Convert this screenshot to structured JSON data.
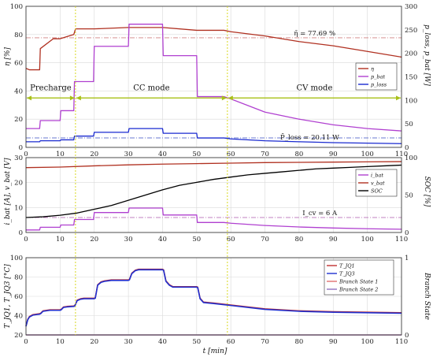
{
  "chart_data": [
    {
      "type": "line",
      "panel": "top",
      "ylabel": "η [%]",
      "ylabel_right": "p_loss, p_bat [W]",
      "xlim": [
        0,
        110
      ],
      "ylim": [
        0,
        100
      ],
      "ylim_right": [
        0,
        300
      ],
      "xticks": [
        "0",
        "10",
        "20",
        "30",
        "40",
        "50",
        "60",
        "70",
        "80",
        "90",
        "100",
        "110"
      ],
      "yticks": [
        "0",
        "20",
        "40",
        "60",
        "80",
        "100"
      ],
      "yticks_right": [
        "0",
        "50",
        "100",
        "150",
        "200",
        "250",
        "300"
      ],
      "grid": true,
      "legend": {
        "placement": "right",
        "entries": [
          "η",
          "p_bat",
          "p_loss"
        ]
      },
      "annotations": {
        "eta_avg": "η̄ = 77.69 %",
        "ploss_avg": "P̄_loss = 20.11 W",
        "precharge": "Precharge",
        "cc": "CC mode",
        "cv": "CV mode"
      },
      "reference_lines": {
        "eta_avg": 77.69,
        "ploss_avg_W": 20.11
      },
      "phase_boundaries_min": [
        14.5,
        59
      ],
      "series": [
        {
          "name": "η",
          "color": "#b03020",
          "axis": "left",
          "x": [
            0,
            1,
            4,
            4.2,
            8,
            10,
            14,
            14.5,
            15,
            20,
            30,
            40,
            50,
            58,
            60,
            70,
            80,
            90,
            100,
            110
          ],
          "y": [
            56,
            55,
            55,
            70,
            77,
            77,
            80,
            84,
            84,
            84,
            85,
            85,
            83,
            83,
            82,
            79,
            75,
            72,
            68,
            64
          ]
        },
        {
          "name": "p_bat",
          "color": "#b040d0",
          "axis": "right",
          "x": [
            0,
            4,
            4.2,
            10,
            10.2,
            14,
            14.2,
            19.8,
            20,
            30,
            30.2,
            40,
            40.2,
            50,
            50.2,
            58,
            60,
            70,
            80,
            90,
            100,
            110
          ],
          "y": [
            40,
            40,
            57,
            57,
            78,
            78,
            140,
            140,
            215,
            215,
            262,
            262,
            195,
            195,
            108,
            108,
            103,
            75,
            60,
            48,
            40,
            35
          ]
        },
        {
          "name": "p_loss",
          "color": "#1a2ad0",
          "axis": "right",
          "x": [
            0,
            4,
            4.2,
            10,
            10.2,
            14,
            14.2,
            19.8,
            20,
            30,
            30.2,
            40,
            40.2,
            50,
            50.2,
            58,
            60,
            70,
            80,
            90,
            100,
            110
          ],
          "y": [
            12,
            12,
            14,
            14,
            16,
            16,
            24,
            24,
            32,
            32,
            40,
            40,
            30,
            30,
            20,
            20,
            18,
            14,
            12,
            10,
            9,
            8
          ]
        }
      ]
    },
    {
      "type": "line",
      "panel": "middle",
      "ylabel": "i_bat [A], v_bat [V]",
      "ylabel_right": "SOC [%]",
      "xlim": [
        0,
        110
      ],
      "ylim": [
        0,
        30
      ],
      "ylim_right": [
        0,
        100
      ],
      "xticks": [
        "0",
        "10",
        "20",
        "30",
        "40",
        "50",
        "60",
        "70",
        "80",
        "90",
        "100",
        "110"
      ],
      "yticks": [
        "0",
        "10",
        "20",
        "30"
      ],
      "yticks_right": [
        "0",
        "50",
        "100"
      ],
      "grid": true,
      "legend": {
        "placement": "right",
        "entries": [
          "i_bat",
          "v_bat",
          "SOC"
        ]
      },
      "annotations": {
        "i_cv": "I_cv = 6 A"
      },
      "reference_lines": {
        "i_cv_A": 6
      },
      "series": [
        {
          "name": "i_bat",
          "color": "#b040d0",
          "axis": "left",
          "x": [
            0,
            4,
            4.2,
            10,
            10.2,
            14,
            14.2,
            19.8,
            20,
            30,
            30.2,
            40,
            40.2,
            50,
            50.2,
            58,
            60,
            70,
            80,
            90,
            100,
            110
          ],
          "y": [
            1,
            1,
            2.1,
            2.1,
            3,
            3,
            5.2,
            5.2,
            8,
            8,
            9.8,
            9.8,
            7,
            7,
            4,
            4,
            3.7,
            2.8,
            2.2,
            1.8,
            1.5,
            1.3
          ]
        },
        {
          "name": "v_bat",
          "color": "#b03020",
          "axis": "left",
          "x": [
            0,
            10,
            20,
            30,
            40,
            50,
            60,
            70,
            80,
            90,
            100,
            110
          ],
          "y": [
            26,
            26.2,
            26.7,
            27.1,
            27.4,
            27.6,
            27.8,
            28,
            28.1,
            28.2,
            28.3,
            28.4
          ]
        },
        {
          "name": "SOC",
          "color": "#000000",
          "axis": "right",
          "x": [
            0,
            5,
            10,
            15,
            20,
            25,
            30,
            35,
            40,
            45,
            50,
            55,
            60,
            65,
            70,
            75,
            80,
            85,
            90,
            95,
            100,
            105,
            110
          ],
          "y": [
            20,
            21,
            23,
            26,
            31,
            36,
            43,
            50,
            57,
            63,
            67,
            71,
            74,
            77,
            79,
            81,
            83,
            85,
            86,
            87,
            88,
            89,
            90
          ]
        }
      ]
    },
    {
      "type": "line",
      "panel": "bottom",
      "ylabel": "T_JQ1, T_JQ3 [°C]",
      "ylabel_right": "Branch State",
      "xlabel": "t [min]",
      "xlim": [
        0,
        110
      ],
      "ylim": [
        20,
        100
      ],
      "ylim_right": [
        0,
        1
      ],
      "xticks": [
        "0",
        "10",
        "20",
        "30",
        "40",
        "50",
        "60",
        "70",
        "80",
        "90",
        "100",
        "110"
      ],
      "yticks": [
        "20",
        "40",
        "60",
        "80",
        "100"
      ],
      "yticks_right": [
        "0",
        "1"
      ],
      "grid": true,
      "legend": {
        "placement": "top-right",
        "entries": [
          "T_JQ1",
          "T_JQ3",
          "Branch State 1",
          "Branch State 2"
        ]
      },
      "series": [
        {
          "name": "T_JQ1",
          "color": "#c03030",
          "axis": "left",
          "x": [
            0,
            0.5,
            1,
            2,
            3,
            4,
            4.3,
            5,
            6,
            7,
            8,
            10,
            10.3,
            11,
            12,
            14,
            14.3,
            15,
            16,
            17,
            19,
            20,
            20.3,
            21,
            22,
            23,
            25,
            30,
            30.3,
            31,
            32,
            33,
            35,
            40,
            40.3,
            41,
            42,
            43,
            45,
            50,
            50.3,
            51,
            52,
            55,
            60,
            70,
            80,
            90,
            100,
            110
          ],
          "y": [
            29,
            36,
            39,
            41,
            41.5,
            42,
            42.5,
            45,
            45.5,
            46,
            46,
            46,
            46.5,
            49,
            49.5,
            50,
            50.5,
            56,
            57.5,
            58,
            58,
            58,
            58.5,
            72,
            75,
            76,
            77,
            77,
            77.5,
            84,
            87,
            88,
            88,
            88,
            87.5,
            76,
            72,
            70,
            70,
            70,
            69.5,
            58,
            54,
            53,
            51,
            47,
            45,
            44,
            43.5,
            43
          ]
        },
        {
          "name": "T_JQ3",
          "color": "#2030d0",
          "axis": "left",
          "x": [
            0,
            0.5,
            1,
            2,
            3,
            4,
            4.3,
            5,
            6,
            7,
            8,
            10,
            10.3,
            11,
            12,
            14,
            14.3,
            15,
            16,
            17,
            19,
            20,
            20.3,
            21,
            22,
            23,
            25,
            30,
            30.3,
            31,
            32,
            33,
            35,
            40,
            40.3,
            41,
            42,
            43,
            45,
            50,
            50.3,
            51,
            52,
            55,
            60,
            70,
            80,
            90,
            100,
            110
          ],
          "y": [
            29,
            35.5,
            38.5,
            40.5,
            41,
            41.5,
            42,
            44.5,
            45,
            45.5,
            45.5,
            45.5,
            46,
            48.5,
            49,
            49.5,
            50,
            55.5,
            57,
            57.5,
            57.5,
            57.5,
            58,
            71.5,
            74.5,
            75.5,
            76.5,
            76.5,
            77,
            83.5,
            86.5,
            87.5,
            87.5,
            87.5,
            87,
            75.5,
            71.5,
            69.5,
            69.5,
            69.5,
            69,
            57.5,
            53.5,
            52.5,
            50.5,
            46.5,
            44.5,
            43.5,
            43,
            42.5
          ]
        },
        {
          "name": "Branch State 1",
          "color": "#e07070",
          "axis": "right",
          "x": [
            0,
            110
          ],
          "y": [
            0,
            0
          ]
        },
        {
          "name": "Branch State 2",
          "color": "#9070c0",
          "axis": "right",
          "x": [
            0,
            110
          ],
          "y": [
            0,
            0
          ]
        }
      ]
    }
  ],
  "labels": {
    "top_ylabel": "η [%]",
    "top_ylabel_right": "p_loss, p_bat [W]",
    "mid_ylabel": "i_bat [A], v_bat [V]",
    "mid_ylabel_right": "SOC [%]",
    "bot_ylabel": "T_JQ1, T_JQ3 [°C]",
    "bot_ylabel_right": "Branch State",
    "xlabel": "t [min]"
  }
}
